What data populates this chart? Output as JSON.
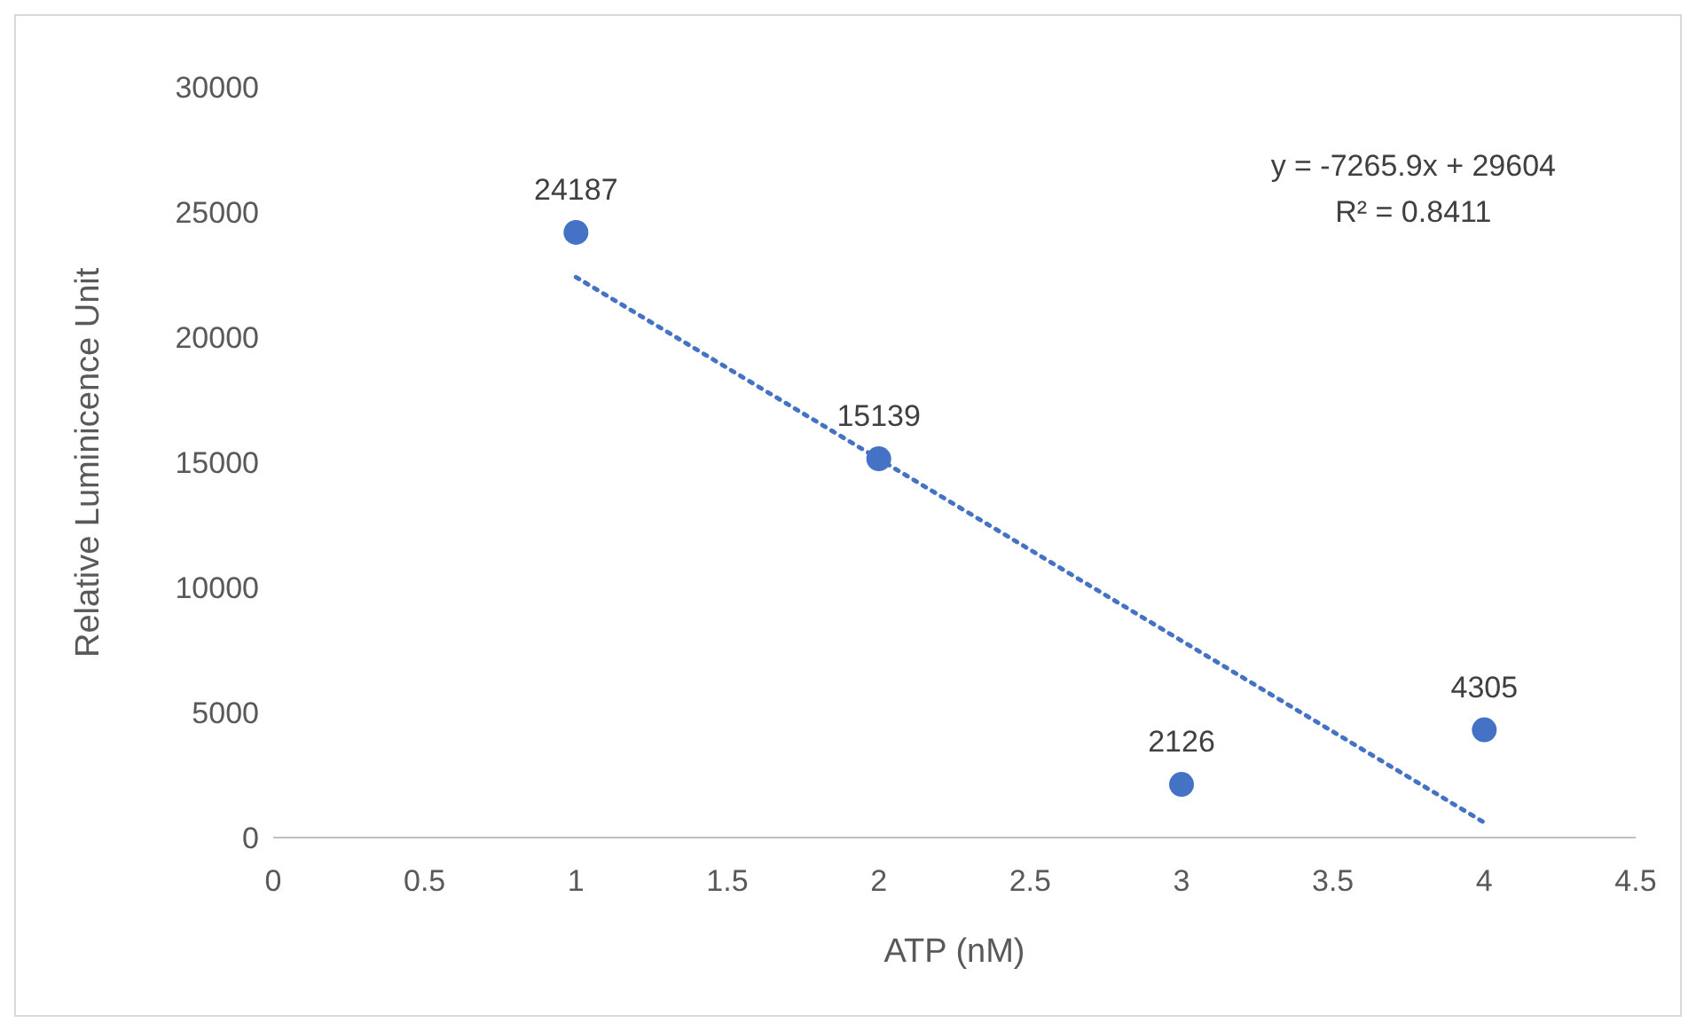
{
  "chart_data": {
    "type": "scatter",
    "xlabel": "ATP (nM)",
    "ylabel": "Relative Luminicence Unit",
    "xlim": [
      0,
      4.5
    ],
    "xticks": [
      0,
      0.5,
      1,
      1.5,
      2,
      2.5,
      3,
      3.5,
      4,
      4.5
    ],
    "ylim": [
      0,
      30000
    ],
    "yticks": [
      0,
      5000,
      10000,
      15000,
      20000,
      25000,
      30000
    ],
    "grid": false,
    "series": [
      {
        "x": [
          1,
          2,
          3,
          4
        ],
        "values": [
          24187,
          15139,
          2126,
          4305
        ],
        "value_labels": [
          "24187",
          "15139",
          "2126",
          "4305"
        ],
        "color": "#4472c4",
        "marker": "circle"
      },
      {
        "type": "line",
        "x": [
          1,
          4
        ],
        "values": [
          22400,
          600
        ],
        "color": "#4472c4",
        "marker": "none",
        "line_style": "dotted"
      }
    ],
    "annotations": [
      "y = -7265.9x + 29604",
      "R² = 0.8411"
    ]
  }
}
